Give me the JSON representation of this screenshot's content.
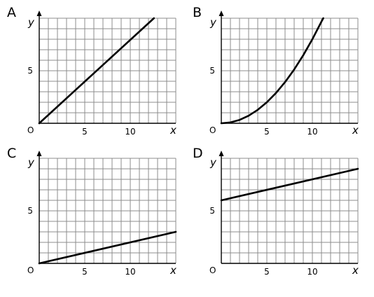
{
  "chart_data": [
    {
      "type": "line",
      "panel": "A",
      "xlabel": "x",
      "ylabel": "y",
      "origin": "O",
      "xlim": [
        0,
        15
      ],
      "ylim": [
        0,
        10
      ],
      "x_tick_labels": [
        "5",
        "10"
      ],
      "y_tick_labels": [
        "5"
      ],
      "grid": true,
      "series": [
        {
          "x": [
            0,
            12.6
          ],
          "y": [
            0,
            10
          ]
        }
      ]
    },
    {
      "type": "line",
      "panel": "B",
      "xlabel": "x",
      "ylabel": "y",
      "origin": "O",
      "xlim": [
        0,
        15
      ],
      "ylim": [
        0,
        10
      ],
      "x_tick_labels": [
        "5",
        "10"
      ],
      "y_tick_labels": [
        "5"
      ],
      "grid": true,
      "series": [
        {
          "x": [
            0,
            1,
            2,
            3,
            4,
            5,
            6,
            7,
            8,
            9,
            10,
            11,
            11.2
          ],
          "y": [
            0,
            0.08,
            0.32,
            0.72,
            1.28,
            2.0,
            2.88,
            3.92,
            5.12,
            6.48,
            8.0,
            9.68,
            10
          ]
        }
      ]
    },
    {
      "type": "line",
      "panel": "C",
      "xlabel": "x",
      "ylabel": "y",
      "origin": "O",
      "xlim": [
        0,
        15
      ],
      "ylim": [
        0,
        10
      ],
      "x_tick_labels": [
        "5",
        "10"
      ],
      "y_tick_labels": [
        "5"
      ],
      "grid": true,
      "series": [
        {
          "x": [
            0,
            15
          ],
          "y": [
            0,
            3
          ]
        }
      ]
    },
    {
      "type": "line",
      "panel": "D",
      "xlabel": "x",
      "ylabel": "y",
      "origin": "O",
      "xlim": [
        0,
        15
      ],
      "ylim": [
        0,
        10
      ],
      "x_tick_labels": [
        "5",
        "10"
      ],
      "y_tick_labels": [
        "5"
      ],
      "grid": true,
      "series": [
        {
          "x": [
            0,
            15
          ],
          "y": [
            6,
            9
          ]
        }
      ]
    }
  ]
}
